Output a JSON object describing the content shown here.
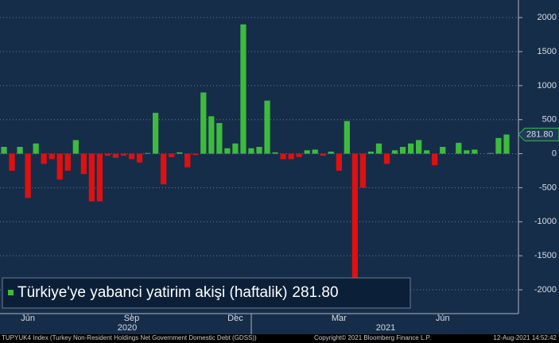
{
  "chart_data": {
    "type": "bar",
    "series": [
      {
        "name": "Türkiye'ye yabanci yatirim akişi (haftalik)",
        "color": "#3dbb3d",
        "negative_color": "#e01010",
        "values": [
          100,
          -250,
          100,
          -650,
          150,
          -150,
          -80,
          -380,
          -250,
          200,
          -300,
          -700,
          -700,
          -30,
          -60,
          -30,
          -80,
          -130,
          10,
          600,
          -450,
          -50,
          20,
          -200,
          -20,
          900,
          550,
          450,
          80,
          150,
          1900,
          80,
          100,
          780,
          20,
          -80,
          -80,
          -50,
          50,
          60,
          -30,
          30,
          -250,
          480,
          -1850,
          -500,
          30,
          150,
          -150,
          50,
          100,
          150,
          200,
          50,
          -170,
          100,
          0,
          160,
          50,
          60,
          0,
          10,
          230,
          281.8
        ]
      }
    ],
    "last_value_label": "281.80",
    "categories": [
      null,
      null,
      null,
      "Jun",
      null,
      null,
      null,
      null,
      null,
      null,
      null,
      null,
      null,
      null,
      null,
      null,
      "Sep",
      null,
      null,
      null,
      null,
      null,
      null,
      null,
      null,
      null,
      null,
      null,
      null,
      "Dec",
      null,
      null,
      null,
      null,
      null,
      null,
      null,
      null,
      null,
      null,
      null,
      null,
      "Mar",
      null,
      null,
      null,
      null,
      null,
      null,
      null,
      null,
      null,
      null,
      null,
      null,
      "Jun",
      null,
      null,
      null,
      null,
      null,
      null,
      null,
      null
    ],
    "year_labels": [
      "2020",
      "2021"
    ],
    "ylim": [
      -2350,
      2200
    ],
    "yticks": [
      -2000,
      -1500,
      -1000,
      -500,
      0,
      500,
      1000,
      1500,
      2000
    ],
    "grid": true,
    "footer_left": "TUPYUK4 Index (Turkey Non-Resident Holdings Net Government Domestic Debt (GDSS))",
    "footer_center": "Copyright© 2021 Bloomberg Finance L.P.",
    "footer_right": "12-Aug-2021 14:52:42"
  }
}
